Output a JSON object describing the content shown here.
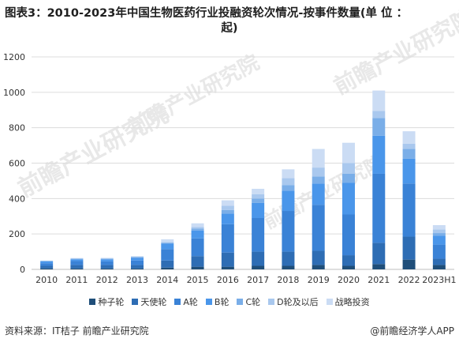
{
  "title_line1": "图表3：2010-2023年中国生物医药行业投融资轮次情况-按事件数量(单 位 ：",
  "title_line2": "起)",
  "footer": {
    "source": "资料来源：IT桔子 前瞻产业研究院",
    "brand": "@前瞻经济学人APP"
  },
  "watermark": "前瞻产业研究院",
  "chart_data": {
    "type": "bar",
    "stacked": true,
    "categories": [
      "2010",
      "2011",
      "2012",
      "2013",
      "2014",
      "2015",
      "2016",
      "2017",
      "2018",
      "2019",
      "2020",
      "2021",
      "2022",
      "2023H1"
    ],
    "ylim": [
      0,
      1200
    ],
    "yticks": [
      0,
      200,
      400,
      600,
      800,
      1000,
      1200
    ],
    "grid": true,
    "legend_position": "bottom",
    "series": [
      {
        "name": "种子轮",
        "color": "#1f4e79",
        "values": [
          5,
          5,
          5,
          5,
          10,
          15,
          15,
          20,
          20,
          25,
          20,
          30,
          55,
          25
        ]
      },
      {
        "name": "天使轮",
        "color": "#2e6db4",
        "values": [
          15,
          20,
          20,
          20,
          40,
          60,
          80,
          80,
          80,
          80,
          60,
          120,
          130,
          35
        ]
      },
      {
        "name": "A轮",
        "color": "#3a82d6",
        "values": [
          15,
          22,
          20,
          25,
          65,
          100,
          160,
          190,
          230,
          260,
          230,
          390,
          300,
          80
        ]
      },
      {
        "name": "B轮",
        "color": "#4a96ea",
        "values": [
          10,
          10,
          12,
          15,
          30,
          45,
          60,
          85,
          115,
          120,
          180,
          215,
          140,
          50
        ]
      },
      {
        "name": "C轮",
        "color": "#7aaee8",
        "values": [
          2,
          3,
          3,
          4,
          5,
          10,
          20,
          25,
          30,
          40,
          50,
          100,
          55,
          15
        ]
      },
      {
        "name": "D轮及以后",
        "color": "#a9c8ee",
        "values": [
          2,
          2,
          2,
          3,
          5,
          10,
          25,
          25,
          40,
          50,
          60,
          40,
          30,
          20
        ]
      },
      {
        "name": "战略投资",
        "color": "#cbdcf4",
        "values": [
          1,
          2,
          3,
          3,
          15,
          20,
          30,
          30,
          50,
          105,
          115,
          115,
          70,
          25
        ]
      }
    ]
  }
}
